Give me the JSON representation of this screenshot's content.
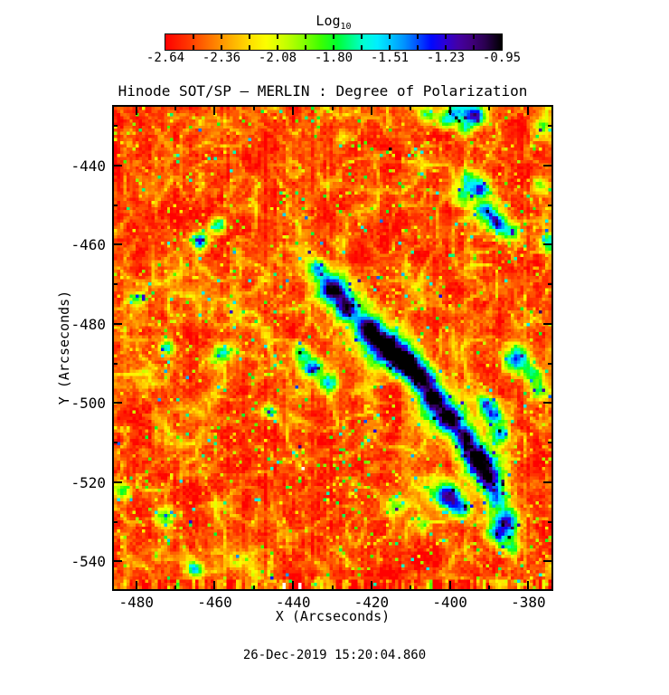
{
  "page": {
    "background": "#ffffff",
    "text_color": "#000000",
    "timestamp": "26-Dec-2019 15:20:04.860"
  },
  "chart_data": {
    "type": "heatmap",
    "title": "Hinode SOT/SP — MERLIN : Degree of Polarization",
    "colorbar": {
      "title": "Log",
      "title_sub": "10",
      "min": -2.64,
      "max": -0.95,
      "tick_values": [
        -2.64,
        -2.36,
        -2.08,
        -1.8,
        -1.51,
        -1.23,
        -0.95
      ],
      "tick_labels": [
        "-2.64",
        "-2.36",
        "-2.08",
        "-1.80",
        "-1.51",
        "-1.23",
        "-0.95"
      ],
      "minor_divisions": 12,
      "colormap": [
        [
          0.0,
          "#ff0000"
        ],
        [
          0.07,
          "#ff3800"
        ],
        [
          0.13,
          "#ff7200"
        ],
        [
          0.19,
          "#ffaa00"
        ],
        [
          0.25,
          "#ffdd00"
        ],
        [
          0.3,
          "#fbff00"
        ],
        [
          0.36,
          "#c3ff00"
        ],
        [
          0.41,
          "#86ff00"
        ],
        [
          0.46,
          "#3eff00"
        ],
        [
          0.51,
          "#00ff2f"
        ],
        [
          0.55,
          "#00ff83"
        ],
        [
          0.59,
          "#00ffd5"
        ],
        [
          0.63,
          "#00eeff"
        ],
        [
          0.67,
          "#00c3ff"
        ],
        [
          0.71,
          "#0092ff"
        ],
        [
          0.75,
          "#004eff"
        ],
        [
          0.79,
          "#0008ff"
        ],
        [
          0.83,
          "#2a00d8"
        ],
        [
          0.87,
          "#4400a4"
        ],
        [
          0.91,
          "#40007c"
        ],
        [
          0.95,
          "#2a0050"
        ],
        [
          1.0,
          "#000000"
        ]
      ]
    },
    "x_axis": {
      "label": "X (Arcseconds)",
      "range": [
        -485.7,
        -374.1
      ],
      "major_ticks": [
        -480,
        -460,
        -440,
        -420,
        -400,
        -380
      ],
      "major_tick_labels": [
        "-480",
        "-460",
        "-440",
        "-420",
        "-400",
        "-380"
      ],
      "minor_step": 10
    },
    "y_axis": {
      "label": "Y (Arcseconds)",
      "range": [
        -547.0,
        -425.2
      ],
      "major_ticks": [
        -440,
        -460,
        -480,
        -500,
        -520,
        -540
      ],
      "major_tick_labels": [
        "-440",
        "-460",
        "-480",
        "-500",
        "-520",
        "-540"
      ],
      "minor_step": 10
    },
    "field": {
      "grid": [
        140,
        154
      ],
      "seed": 20191226,
      "base": -2.52,
      "noise": {
        "low": 0.1,
        "low2": 0.08,
        "pixel": 0.16,
        "stripe": 0.1,
        "web": 0.36,
        "speckle_p": 0.07,
        "rare_p": 0.0015,
        "bottom_rows": 3,
        "bottom_stripe": 0.45
      },
      "features": [
        [
          -434,
          -466,
          2.0,
          1.05
        ],
        [
          -430,
          -471,
          2.4,
          1.25
        ],
        [
          -426,
          -476,
          2.2,
          1.15
        ],
        [
          -421,
          -481,
          2.4,
          1.3
        ],
        [
          -416,
          -486,
          2.7,
          1.4
        ],
        [
          -411,
          -490,
          2.6,
          1.65
        ],
        [
          -407,
          -494,
          2.4,
          1.45
        ],
        [
          -404,
          -499,
          2.2,
          1.3
        ],
        [
          -400,
          -504,
          2.5,
          1.38
        ],
        [
          -396,
          -509,
          2.3,
          1.42
        ],
        [
          -393,
          -514,
          2.3,
          1.3
        ],
        [
          -390,
          -519,
          2.2,
          1.18
        ],
        [
          -388,
          -524,
          2.1,
          1.05
        ],
        [
          -385,
          -529,
          2.0,
          0.9
        ],
        [
          -429,
          -472,
          4.5,
          0.45
        ],
        [
          -418,
          -485,
          5.0,
          0.5
        ],
        [
          -403,
          -501,
          5.0,
          0.5
        ],
        [
          -391,
          -517,
          4.0,
          0.45
        ],
        [
          -386,
          -532,
          2.8,
          0.55
        ],
        [
          -389,
          -503,
          1.8,
          1.05
        ],
        [
          -387,
          -508,
          1.7,
          1.0
        ],
        [
          -391,
          -500,
          1.5,
          0.9
        ],
        [
          -400,
          -524,
          2.2,
          1.15
        ],
        [
          -397,
          -527,
          1.8,
          0.95
        ],
        [
          -402,
          -522,
          2.5,
          0.55
        ],
        [
          -398,
          -426,
          2.0,
          1.0
        ],
        [
          -393.5,
          -427.5,
          1.8,
          1.3
        ],
        [
          -401,
          -429,
          1.6,
          0.8
        ],
        [
          -396,
          -431,
          1.4,
          0.7
        ],
        [
          -395,
          -444,
          2.0,
          0.85
        ],
        [
          -392,
          -446,
          1.6,
          1.05
        ],
        [
          -397,
          -448,
          1.6,
          0.7
        ],
        [
          -388,
          -454.5,
          1.9,
          1.2
        ],
        [
          -391,
          -451,
          1.8,
          0.8
        ],
        [
          -385,
          -457,
          1.7,
          0.75
        ],
        [
          -377,
          -445,
          1.4,
          0.65
        ],
        [
          -374.5,
          -459.5,
          1.7,
          1.0
        ],
        [
          -377,
          -430,
          1.6,
          0.6
        ],
        [
          -383,
          -489,
          2.2,
          1.15
        ],
        [
          -379,
          -493,
          1.9,
          0.85
        ],
        [
          -377,
          -497,
          1.8,
          0.7
        ],
        [
          -435,
          -491,
          1.9,
          1.1
        ],
        [
          -431,
          -495,
          1.7,
          0.95
        ],
        [
          -438,
          -487,
          1.5,
          0.8
        ],
        [
          -446,
          -502,
          1.5,
          0.75
        ],
        [
          -464,
          -459,
          1.6,
          1.1
        ],
        [
          -459,
          -455,
          1.5,
          0.9
        ],
        [
          -472,
          -486,
          1.4,
          0.9
        ],
        [
          -458,
          -487,
          1.4,
          0.75
        ],
        [
          -480,
          -474,
          1.4,
          0.6
        ],
        [
          -484,
          -522,
          1.6,
          0.8
        ],
        [
          -473,
          -529,
          1.9,
          0.65
        ],
        [
          -465,
          -542,
          1.3,
          0.85
        ],
        [
          -414,
          -526,
          1.8,
          0.55
        ],
        [
          -407,
          -531,
          1.6,
          0.5
        ],
        [
          -388,
          -533,
          1.9,
          0.7
        ],
        [
          -384,
          -537,
          1.5,
          0.5
        ],
        [
          -406,
          -427,
          1.5,
          0.55
        ]
      ],
      "missing_dots": [
        [
          -437.3,
          -516.5
        ]
      ],
      "missing_bottom_columns": [
        -442.3,
        -437.9
      ],
      "missing_bottom_rows": 2
    }
  }
}
